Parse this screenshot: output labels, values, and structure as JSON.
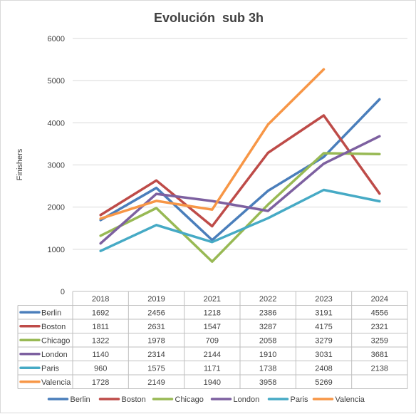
{
  "chart_data": {
    "type": "line",
    "title": "Evolución  sub 3h",
    "xlabel": "",
    "ylabel": "Finishers",
    "ylim": [
      0,
      6000
    ],
    "yticks": [
      0,
      1000,
      2000,
      3000,
      4000,
      5000,
      6000
    ],
    "grid": true,
    "legend_position": "bottom",
    "data_table": true,
    "categories": [
      "2018",
      "2019",
      "2021",
      "2022",
      "2023",
      "2024"
    ],
    "series": [
      {
        "name": "Berlin",
        "color": "#4a7ebb",
        "values": [
          1692,
          2456,
          1218,
          2386,
          3191,
          4556
        ]
      },
      {
        "name": "Boston",
        "color": "#be4b48",
        "values": [
          1811,
          2631,
          1547,
          3287,
          4175,
          2321
        ]
      },
      {
        "name": "Chicago",
        "color": "#98b954",
        "values": [
          1322,
          1978,
          709,
          2058,
          3279,
          3259
        ]
      },
      {
        "name": "London",
        "color": "#7d60a0",
        "values": [
          1140,
          2314,
          2144,
          1910,
          3031,
          3681
        ]
      },
      {
        "name": "Paris",
        "color": "#46aac5",
        "values": [
          960,
          1575,
          1171,
          1738,
          2408,
          2138
        ]
      },
      {
        "name": "Valencia",
        "color": "#f79646",
        "values": [
          1728,
          2149,
          1940,
          3958,
          5269,
          null
        ]
      }
    ]
  }
}
